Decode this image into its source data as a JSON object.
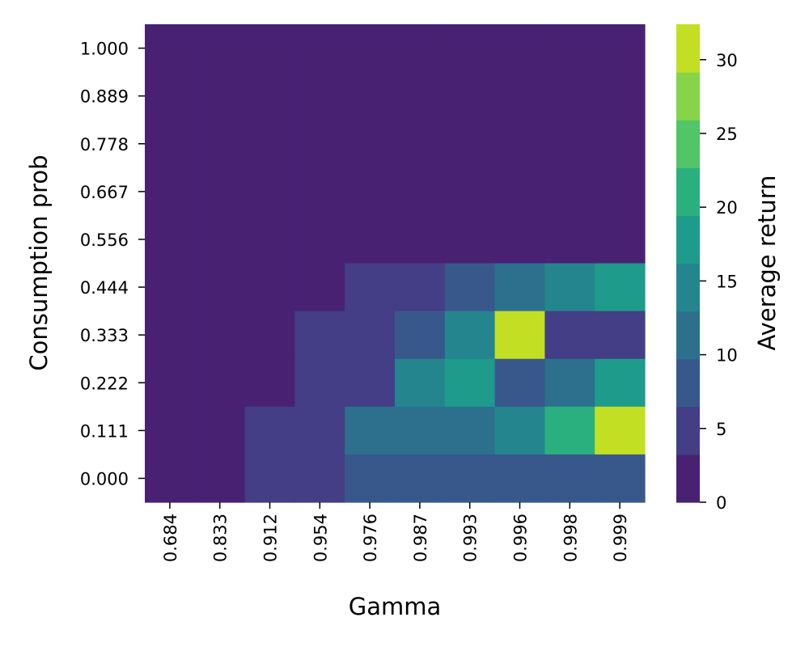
{
  "chart_data": {
    "type": "heatmap",
    "xlabel": "Gamma",
    "ylabel": "Consumption prob",
    "x_categories": [
      "0.684",
      "0.833",
      "0.912",
      "0.954",
      "0.976",
      "0.987",
      "0.993",
      "0.996",
      "0.998",
      "0.999"
    ],
    "y_categories": [
      "1.000",
      "0.889",
      "0.778",
      "0.667",
      "0.556",
      "0.444",
      "0.333",
      "0.222",
      "0.111",
      "0.000"
    ],
    "values": [
      [
        0,
        0,
        0,
        0,
        0,
        0,
        0,
        0,
        0,
        0
      ],
      [
        0,
        0,
        0,
        0,
        0,
        0,
        0,
        0,
        0,
        0
      ],
      [
        0,
        0,
        0,
        0,
        0,
        0,
        0,
        0,
        0,
        0
      ],
      [
        0,
        0,
        0,
        0,
        0,
        0,
        0,
        0,
        0,
        0
      ],
      [
        0,
        0,
        0,
        0,
        0,
        0,
        0,
        0,
        0,
        0
      ],
      [
        0,
        0,
        0,
        0,
        5,
        5,
        8,
        12,
        15,
        18
      ],
      [
        0,
        0,
        0,
        5,
        5,
        8,
        15,
        32,
        5,
        5
      ],
      [
        0,
        0,
        0,
        5,
        5,
        13,
        19,
        8,
        12,
        18
      ],
      [
        0,
        0,
        5,
        5,
        10,
        10,
        12,
        15,
        20,
        32
      ],
      [
        0,
        0,
        5,
        5,
        8,
        8,
        8,
        8,
        8,
        8
      ]
    ],
    "colorbar": {
      "label": "Average return",
      "ticks": [
        0,
        5,
        10,
        15,
        20,
        25,
        30
      ],
      "range": [
        0,
        32.4
      ],
      "colors": [
        "#482173",
        "#433e85",
        "#38588c",
        "#2d708e",
        "#25858e",
        "#1e9b8a",
        "#2ab07f",
        "#52c569",
        "#86d549",
        "#c2df23"
      ]
    },
    "colormap": "viridis",
    "grid": false
  }
}
